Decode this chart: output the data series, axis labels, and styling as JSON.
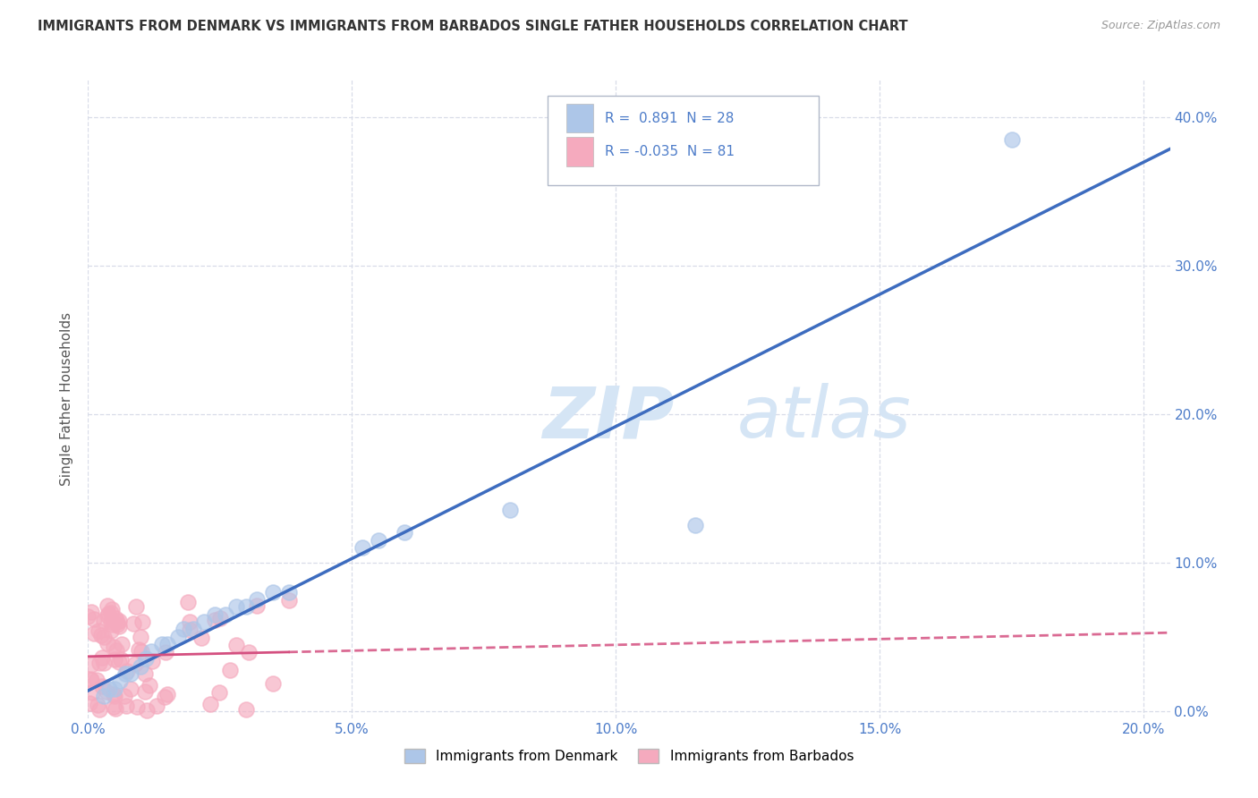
{
  "title": "IMMIGRANTS FROM DENMARK VS IMMIGRANTS FROM BARBADOS SINGLE FATHER HOUSEHOLDS CORRELATION CHART",
  "source": "Source: ZipAtlas.com",
  "ylabel": "Single Father Households",
  "xlim": [
    0.0,
    0.205
  ],
  "ylim": [
    -0.005,
    0.425
  ],
  "denmark_R": 0.891,
  "denmark_N": 28,
  "barbados_R": -0.035,
  "barbados_N": 81,
  "denmark_color": "#adc6e8",
  "barbados_color": "#f5aabe",
  "denmark_line_color": "#3d6cbf",
  "barbados_line_color": "#d45080",
  "watermark_color": "#d5e5f5",
  "legend_edge_color": "#b0b8c8",
  "grid_color": "#d8dce8",
  "tick_color": "#4d7cc9",
  "ylabel_color": "#555555",
  "background_color": "#ffffff"
}
